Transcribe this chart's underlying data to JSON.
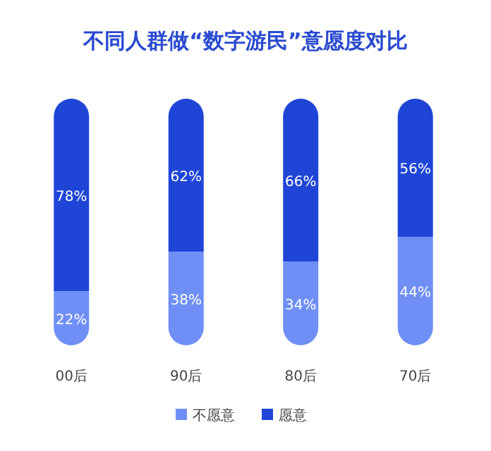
{
  "chart_data": {
    "type": "bar",
    "title": "不同人群做“数字游民”意愿度对比",
    "categories": [
      "00后",
      "90后",
      "80后",
      "70后"
    ],
    "stacked": true,
    "legend": "bottom",
    "series": [
      {
        "name": "不愿意",
        "color": "#6f8ff7",
        "values": [
          22,
          38,
          34,
          44
        ],
        "value_labels": [
          "22%",
          "38%",
          "34%",
          "44%"
        ]
      },
      {
        "name": "愿意",
        "color": "#1f45d6",
        "values": [
          78,
          62,
          66,
          56
        ],
        "value_labels": [
          "78%",
          "62%",
          "66%",
          "56%"
        ]
      }
    ]
  }
}
